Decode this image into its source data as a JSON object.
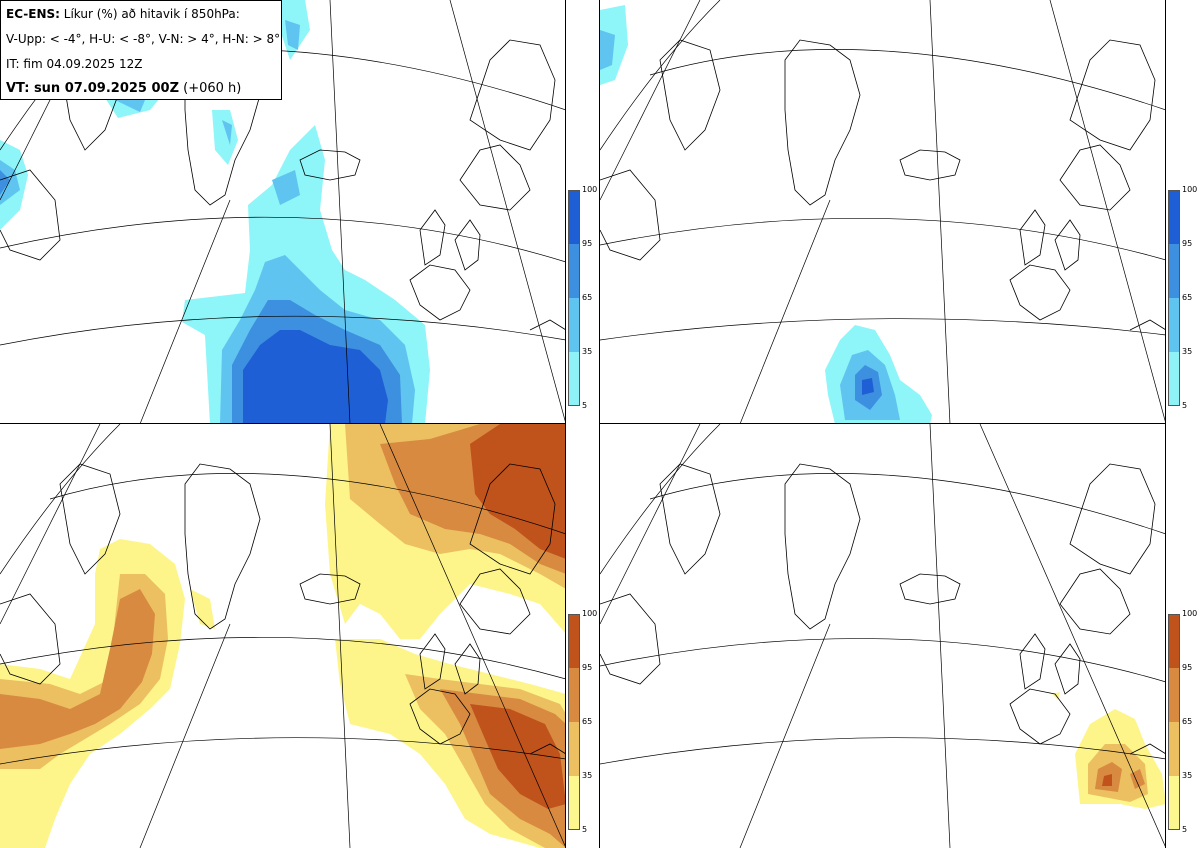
{
  "header": {
    "model": "EC-ENS:",
    "title": "Líkur (%) að hitavik í 850hPa:",
    "thresholds": "V-Upp: < -4°, H-U: < -8°, V-N: > 4°, H-N: > 8°",
    "initial_time": "IT: fim 04.09.2025 12Z",
    "valid_prefix": "VT: sun 07.09.2025 00Z",
    "lead": "(+060 h)"
  },
  "panels": [
    {
      "id": "V-Upp",
      "colormap": "cold"
    },
    {
      "id": "H-U",
      "colormap": "cold"
    },
    {
      "id": "V-N",
      "colormap": "warm"
    },
    {
      "id": "H-N",
      "colormap": "warm"
    }
  ],
  "colorbar_cold": {
    "ticks": [
      "100",
      "95",
      "65",
      "35",
      "5"
    ],
    "colors": [
      "#1f5fd6",
      "#3d8fe0",
      "#5fc4f0",
      "#8ef2f6"
    ]
  },
  "colorbar_warm": {
    "ticks": [
      "100",
      "95",
      "65",
      "35",
      "5"
    ],
    "colors": [
      "#c0521c",
      "#d88a40",
      "#ecc060",
      "#fdf790"
    ]
  },
  "colors": {
    "cold_low": "#8ef5f8",
    "cold_mid": "#5fc4f0",
    "cold_high": "#3d8fe0",
    "cold_max": "#1f5fd6",
    "warm_low": "#fdf58a",
    "warm_mid": "#ecc060",
    "warm_high": "#d88a40",
    "warm_max": "#c0521c"
  }
}
